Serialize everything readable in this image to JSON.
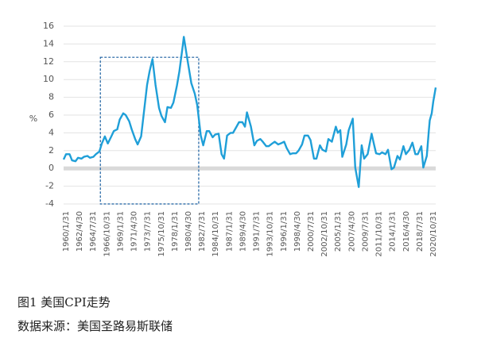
{
  "figure": {
    "caption": "图1 美国CPI走势",
    "source": "数据来源：美国圣路易斯联储"
  },
  "chart_data": {
    "type": "line",
    "title": "",
    "xlabel": "",
    "ylabel": "%",
    "ylim": [
      -4,
      16
    ],
    "yticks": [
      -4,
      -2,
      0,
      2,
      4,
      6,
      8,
      10,
      12,
      14,
      16
    ],
    "xlim": [
      "1960-01-31",
      "2022-06-30"
    ],
    "x_tick_labels": [
      "1960/1/31",
      "1962/4/30",
      "1964/7/31",
      "1966/10/31",
      "1969/1/31",
      "1971/4/30",
      "1973/7/31",
      "1975/10/31",
      "1978/1/31",
      "1980/4/30",
      "1982/7/31",
      "1984/10/31",
      "1987/1/31",
      "1989/4/30",
      "1991/7/31",
      "1993/10/31",
      "1996/1/31",
      "1998/4/30",
      "2000/7/31",
      "2002/10/31",
      "2005/1/31",
      "2007/4/30",
      "2009/7/31",
      "2011/10/31",
      "2014/1/31",
      "2016/4/30",
      "2018/7/31",
      "2020/10/31"
    ],
    "grid": "horizontal",
    "zero_band": true,
    "line_color": "#1f9fd8",
    "annotation": {
      "type": "dashed-box",
      "x_range": [
        "1966-03-31",
        "1982-09-30"
      ],
      "y_range": [
        -4,
        12.5
      ],
      "color": "#1a5fa0"
    },
    "series": [
      {
        "values": [
          {
            "x": "1960-01-31",
            "y": 1.0
          },
          {
            "x": "1960-06-30",
            "y": 1.6
          },
          {
            "x": "1961-01-31",
            "y": 1.6
          },
          {
            "x": "1961-06-30",
            "y": 0.9
          },
          {
            "x": "1962-01-31",
            "y": 0.8
          },
          {
            "x": "1962-06-30",
            "y": 1.2
          },
          {
            "x": "1963-01-31",
            "y": 1.1
          },
          {
            "x": "1963-06-30",
            "y": 1.3
          },
          {
            "x": "1964-01-31",
            "y": 1.4
          },
          {
            "x": "1964-06-30",
            "y": 1.2
          },
          {
            "x": "1965-01-31",
            "y": 1.3
          },
          {
            "x": "1965-06-30",
            "y": 1.6
          },
          {
            "x": "1966-01-31",
            "y": 1.9
          },
          {
            "x": "1966-06-30",
            "y": 2.8
          },
          {
            "x": "1966-12-31",
            "y": 3.6
          },
          {
            "x": "1967-06-30",
            "y": 2.8
          },
          {
            "x": "1968-01-31",
            "y": 3.6
          },
          {
            "x": "1968-06-30",
            "y": 4.2
          },
          {
            "x": "1969-01-31",
            "y": 4.4
          },
          {
            "x": "1969-06-30",
            "y": 5.5
          },
          {
            "x": "1970-01-31",
            "y": 6.2
          },
          {
            "x": "1970-06-30",
            "y": 6.0
          },
          {
            "x": "1971-01-31",
            "y": 5.3
          },
          {
            "x": "1971-06-30",
            "y": 4.4
          },
          {
            "x": "1972-01-31",
            "y": 3.3
          },
          {
            "x": "1972-06-30",
            "y": 2.7
          },
          {
            "x": "1973-01-31",
            "y": 3.6
          },
          {
            "x": "1973-06-30",
            "y": 6.0
          },
          {
            "x": "1974-01-31",
            "y": 9.4
          },
          {
            "x": "1974-06-30",
            "y": 10.9
          },
          {
            "x": "1974-12-31",
            "y": 12.3
          },
          {
            "x": "1975-06-30",
            "y": 9.4
          },
          {
            "x": "1976-01-31",
            "y": 6.8
          },
          {
            "x": "1976-06-30",
            "y": 5.9
          },
          {
            "x": "1977-01-31",
            "y": 5.2
          },
          {
            "x": "1977-06-30",
            "y": 6.9
          },
          {
            "x": "1978-01-31",
            "y": 6.8
          },
          {
            "x": "1978-06-30",
            "y": 7.4
          },
          {
            "x": "1979-01-31",
            "y": 9.3
          },
          {
            "x": "1979-06-30",
            "y": 10.9
          },
          {
            "x": "1980-01-31",
            "y": 13.9
          },
          {
            "x": "1980-03-31",
            "y": 14.8
          },
          {
            "x": "1980-09-30",
            "y": 12.7
          },
          {
            "x": "1981-06-30",
            "y": 9.6
          },
          {
            "x": "1982-01-31",
            "y": 8.4
          },
          {
            "x": "1982-06-30",
            "y": 7.1
          },
          {
            "x": "1983-01-31",
            "y": 3.7
          },
          {
            "x": "1983-06-30",
            "y": 2.6
          },
          {
            "x": "1984-01-31",
            "y": 4.2
          },
          {
            "x": "1984-06-30",
            "y": 4.2
          },
          {
            "x": "1985-01-31",
            "y": 3.5
          },
          {
            "x": "1985-06-30",
            "y": 3.8
          },
          {
            "x": "1986-01-31",
            "y": 3.9
          },
          {
            "x": "1986-07-31",
            "y": 1.6
          },
          {
            "x": "1986-12-31",
            "y": 1.1
          },
          {
            "x": "1987-06-30",
            "y": 3.7
          },
          {
            "x": "1988-01-31",
            "y": 4.0
          },
          {
            "x": "1988-06-30",
            "y": 4.0
          },
          {
            "x": "1989-01-31",
            "y": 4.7
          },
          {
            "x": "1989-06-30",
            "y": 5.2
          },
          {
            "x": "1990-01-31",
            "y": 5.2
          },
          {
            "x": "1990-06-30",
            "y": 4.7
          },
          {
            "x": "1990-10-31",
            "y": 6.3
          },
          {
            "x": "1991-06-30",
            "y": 4.7
          },
          {
            "x": "1992-01-31",
            "y": 2.6
          },
          {
            "x": "1992-06-30",
            "y": 3.1
          },
          {
            "x": "1993-01-31",
            "y": 3.3
          },
          {
            "x": "1993-06-30",
            "y": 3.0
          },
          {
            "x": "1994-01-31",
            "y": 2.5
          },
          {
            "x": "1994-06-30",
            "y": 2.5
          },
          {
            "x": "1995-01-31",
            "y": 2.8
          },
          {
            "x": "1995-06-30",
            "y": 3.0
          },
          {
            "x": "1996-01-31",
            "y": 2.7
          },
          {
            "x": "1996-06-30",
            "y": 2.8
          },
          {
            "x": "1997-01-31",
            "y": 3.0
          },
          {
            "x": "1997-06-30",
            "y": 2.3
          },
          {
            "x": "1998-01-31",
            "y": 1.6
          },
          {
            "x": "1998-06-30",
            "y": 1.7
          },
          {
            "x": "1999-01-31",
            "y": 1.7
          },
          {
            "x": "1999-06-30",
            "y": 2.0
          },
          {
            "x": "2000-01-31",
            "y": 2.7
          },
          {
            "x": "2000-06-30",
            "y": 3.7
          },
          {
            "x": "2001-01-31",
            "y": 3.7
          },
          {
            "x": "2001-06-30",
            "y": 3.2
          },
          {
            "x": "2002-01-31",
            "y": 1.1
          },
          {
            "x": "2002-06-30",
            "y": 1.1
          },
          {
            "x": "2003-01-31",
            "y": 2.6
          },
          {
            "x": "2003-06-30",
            "y": 2.1
          },
          {
            "x": "2004-01-31",
            "y": 1.9
          },
          {
            "x": "2004-06-30",
            "y": 3.3
          },
          {
            "x": "2005-01-31",
            "y": 3.0
          },
          {
            "x": "2005-09-30",
            "y": 4.7
          },
          {
            "x": "2006-01-31",
            "y": 4.0
          },
          {
            "x": "2006-06-30",
            "y": 4.3
          },
          {
            "x": "2006-10-31",
            "y": 1.3
          },
          {
            "x": "2007-06-30",
            "y": 2.7
          },
          {
            "x": "2007-11-30",
            "y": 4.3
          },
          {
            "x": "2008-07-31",
            "y": 5.6
          },
          {
            "x": "2008-12-31",
            "y": 0.1
          },
          {
            "x": "2009-07-31",
            "y": -2.1
          },
          {
            "x": "2010-01-31",
            "y": 2.6
          },
          {
            "x": "2010-06-30",
            "y": 1.1
          },
          {
            "x": "2011-01-31",
            "y": 1.6
          },
          {
            "x": "2011-09-30",
            "y": 3.9
          },
          {
            "x": "2012-01-31",
            "y": 2.9
          },
          {
            "x": "2012-06-30",
            "y": 1.7
          },
          {
            "x": "2013-01-31",
            "y": 1.6
          },
          {
            "x": "2013-06-30",
            "y": 1.8
          },
          {
            "x": "2014-01-31",
            "y": 1.6
          },
          {
            "x": "2014-06-30",
            "y": 2.1
          },
          {
            "x": "2015-01-31",
            "y": -0.1
          },
          {
            "x": "2015-06-30",
            "y": 0.1
          },
          {
            "x": "2016-01-31",
            "y": 1.4
          },
          {
            "x": "2016-06-30",
            "y": 1.0
          },
          {
            "x": "2017-01-31",
            "y": 2.5
          },
          {
            "x": "2017-06-30",
            "y": 1.6
          },
          {
            "x": "2018-01-31",
            "y": 2.1
          },
          {
            "x": "2018-07-31",
            "y": 2.9
          },
          {
            "x": "2019-01-31",
            "y": 1.6
          },
          {
            "x": "2019-06-30",
            "y": 1.6
          },
          {
            "x": "2020-01-31",
            "y": 2.5
          },
          {
            "x": "2020-05-31",
            "y": 0.1
          },
          {
            "x": "2020-12-31",
            "y": 1.4
          },
          {
            "x": "2021-04-30",
            "y": 4.2
          },
          {
            "x": "2021-06-30",
            "y": 5.4
          },
          {
            "x": "2021-10-31",
            "y": 6.2
          },
          {
            "x": "2022-01-31",
            "y": 7.5
          },
          {
            "x": "2022-06-30",
            "y": 9.1
          }
        ]
      }
    ]
  }
}
